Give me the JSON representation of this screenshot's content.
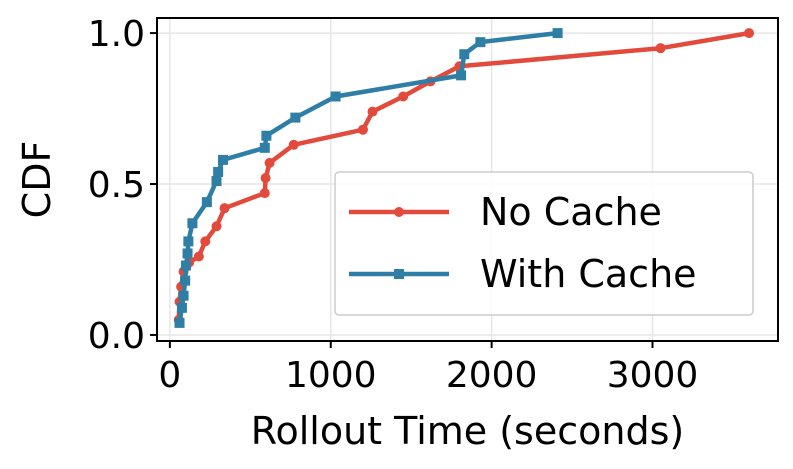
{
  "chart_data": {
    "type": "line",
    "xlabel": "Rollout Time (seconds)",
    "ylabel": "CDF",
    "xlim": [
      -80,
      3780
    ],
    "ylim": [
      -0.02,
      1.05
    ],
    "xticks": [
      0,
      1000,
      2000,
      3000
    ],
    "xtick_labels": [
      "0",
      "1000",
      "2000",
      "3000"
    ],
    "yticks": [
      0.0,
      0.5,
      1.0
    ],
    "ytick_labels": [
      "0.0",
      "0.5",
      "1.0"
    ],
    "grid": true,
    "legend_position": "lower-right",
    "series": [
      {
        "name": "No Cache",
        "color": "#e24a3b",
        "marker": "circle",
        "points": [
          [
            55,
            0.05
          ],
          [
            60,
            0.11
          ],
          [
            70,
            0.16
          ],
          [
            85,
            0.21
          ],
          [
            120,
            0.24
          ],
          [
            180,
            0.26
          ],
          [
            220,
            0.31
          ],
          [
            290,
            0.36
          ],
          [
            340,
            0.42
          ],
          [
            590,
            0.47
          ],
          [
            595,
            0.52
          ],
          [
            620,
            0.57
          ],
          [
            770,
            0.63
          ],
          [
            1200,
            0.68
          ],
          [
            1260,
            0.74
          ],
          [
            1450,
            0.79
          ],
          [
            1620,
            0.84
          ],
          [
            1800,
            0.89
          ],
          [
            3050,
            0.95
          ],
          [
            3600,
            1.0
          ]
        ]
      },
      {
        "name": "With Cache",
        "color": "#2e7ea6",
        "marker": "square",
        "points": [
          [
            60,
            0.04
          ],
          [
            75,
            0.09
          ],
          [
            85,
            0.13
          ],
          [
            95,
            0.18
          ],
          [
            100,
            0.23
          ],
          [
            110,
            0.27
          ],
          [
            115,
            0.31
          ],
          [
            140,
            0.37
          ],
          [
            230,
            0.44
          ],
          [
            290,
            0.51
          ],
          [
            300,
            0.54
          ],
          [
            330,
            0.58
          ],
          [
            590,
            0.62
          ],
          [
            600,
            0.66
          ],
          [
            780,
            0.72
          ],
          [
            1030,
            0.79
          ],
          [
            1810,
            0.86
          ],
          [
            1830,
            0.93
          ],
          [
            1930,
            0.97
          ],
          [
            2410,
            1.0
          ]
        ]
      }
    ]
  }
}
